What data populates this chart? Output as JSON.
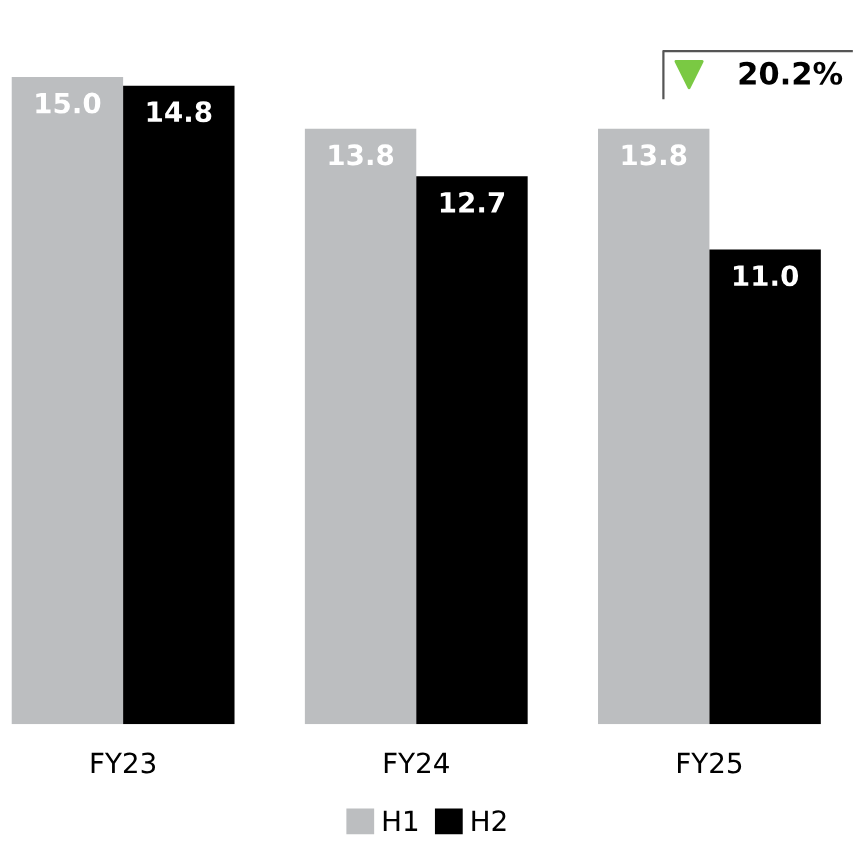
{
  "chart_data": {
    "type": "bar",
    "categories": [
      "FY23",
      "FY24",
      "FY25"
    ],
    "series": [
      {
        "name": "H1",
        "color": "#bcbec0",
        "values": [
          15.0,
          13.8,
          13.8
        ],
        "value_labels": [
          "15.0",
          "13.8",
          "13.8"
        ]
      },
      {
        "name": "H2",
        "color": "#000000",
        "values": [
          14.8,
          12.7,
          11.0
        ],
        "value_labels": [
          "14.8",
          "12.7",
          "11.0"
        ]
      }
    ],
    "tick_labels": "x",
    "legend": "bottom",
    "grid": false,
    "annotations": [
      "20.2%"
    ]
  }
}
